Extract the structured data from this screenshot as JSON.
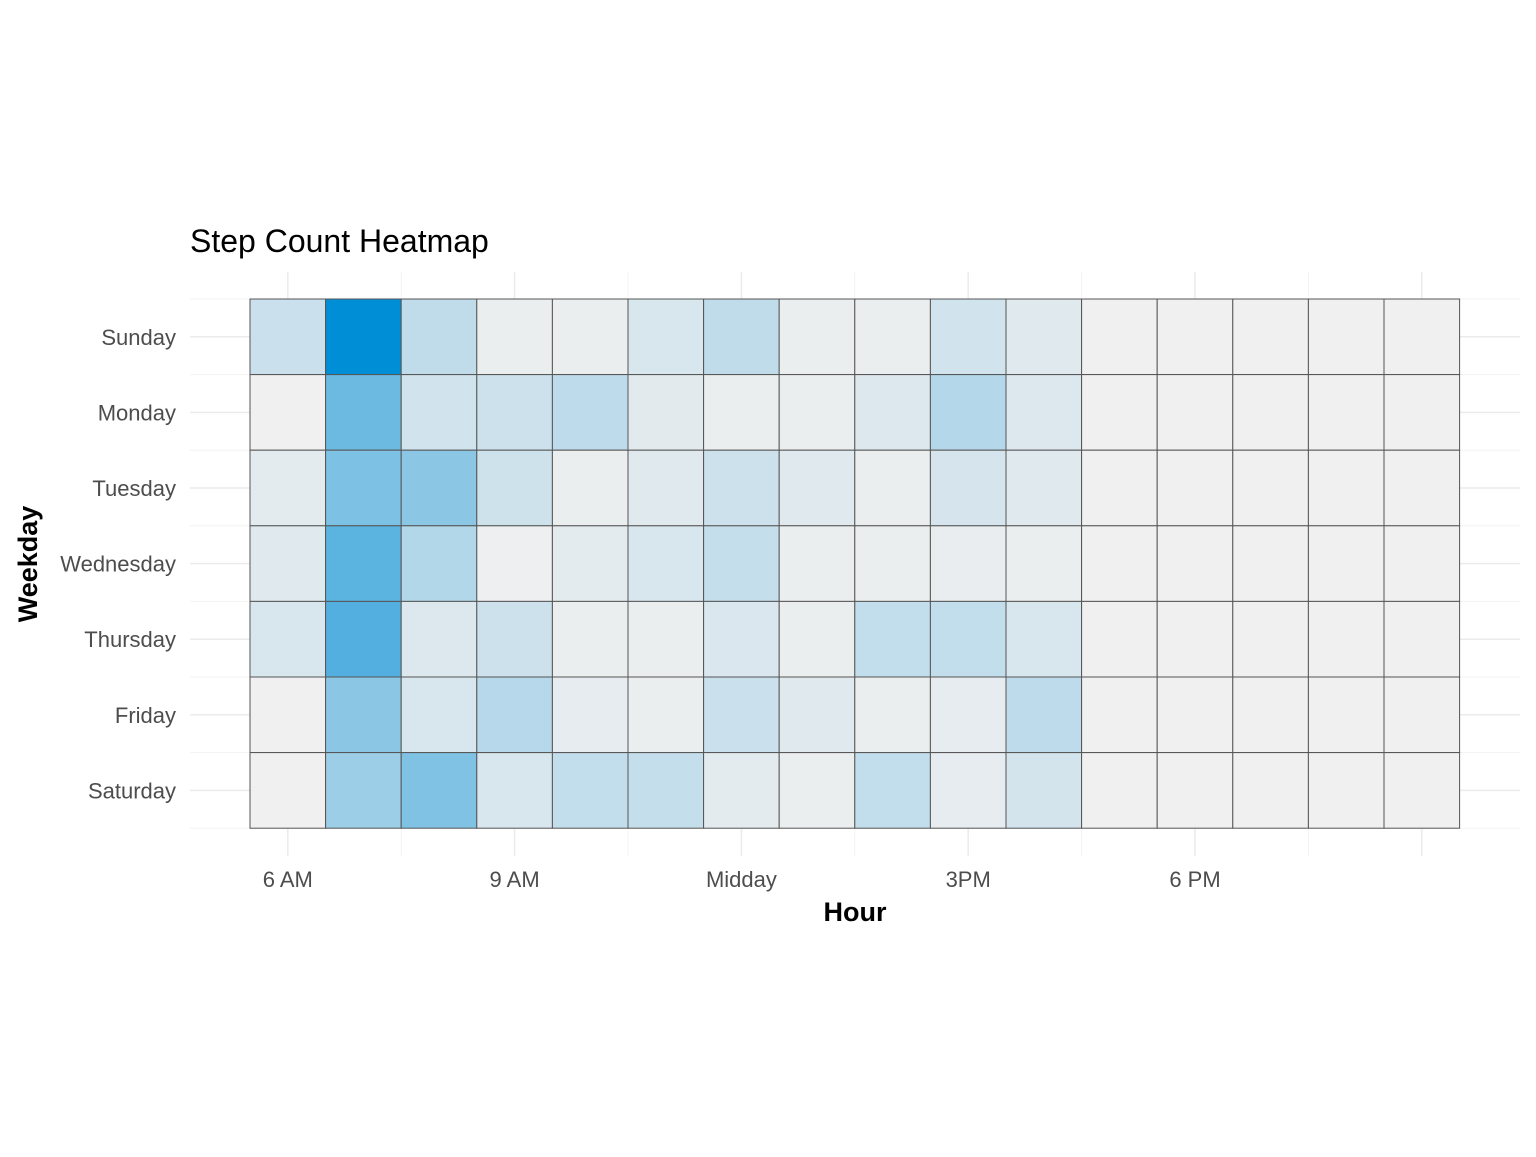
{
  "chart_data": {
    "type": "heatmap",
    "title": "Step Count Heatmap",
    "xlabel": "Hour",
    "ylabel": "Weekday",
    "x_hours": [
      6,
      7,
      8,
      9,
      10,
      11,
      12,
      13,
      14,
      15,
      16,
      17,
      18,
      19,
      20,
      21
    ],
    "x_ticks": [
      {
        "hour": 6,
        "label": "6 AM"
      },
      {
        "hour": 9,
        "label": "9 AM"
      },
      {
        "hour": 12,
        "label": "Midday"
      },
      {
        "hour": 15,
        "label": "3PM"
      },
      {
        "hour": 18,
        "label": "6 PM"
      }
    ],
    "rows": [
      "Sunday",
      "Monday",
      "Tuesday",
      "Wednesday",
      "Thursday",
      "Friday",
      "Saturday"
    ],
    "values": [
      [
        0.16,
        1.0,
        0.2,
        0.02,
        0.02,
        0.1,
        0.2,
        0.02,
        0.02,
        0.13,
        0.07,
        0.0,
        0.0,
        0.0,
        0.0,
        0.0
      ],
      [
        0.0,
        0.55,
        0.13,
        0.15,
        0.21,
        0.06,
        0.02,
        0.02,
        0.08,
        0.25,
        0.08,
        0.0,
        0.0,
        0.0,
        0.0,
        0.0
      ],
      [
        0.05,
        0.48,
        0.42,
        0.14,
        0.02,
        0.07,
        0.15,
        0.07,
        0.02,
        0.11,
        0.07,
        0.0,
        0.0,
        0.0,
        0.0,
        0.0
      ],
      [
        0.07,
        0.62,
        0.26,
        0.01,
        0.05,
        0.1,
        0.18,
        0.02,
        0.02,
        0.03,
        0.02,
        0.0,
        0.0,
        0.0,
        0.0,
        0.0
      ],
      [
        0.1,
        0.66,
        0.08,
        0.15,
        0.02,
        0.02,
        0.09,
        0.02,
        0.19,
        0.19,
        0.1,
        0.0,
        0.0,
        0.0,
        0.0,
        0.0
      ],
      [
        0.0,
        0.42,
        0.1,
        0.24,
        0.04,
        0.02,
        0.16,
        0.07,
        0.02,
        0.04,
        0.21,
        0.0,
        0.0,
        0.0,
        0.0,
        0.0
      ],
      [
        0.0,
        0.35,
        0.47,
        0.1,
        0.19,
        0.18,
        0.05,
        0.02,
        0.19,
        0.04,
        0.12,
        0.0,
        0.0,
        0.0,
        0.0,
        0.0
      ]
    ],
    "value_scale": "relative intensity 0–1",
    "color_low": "#f0f0f0",
    "color_high": "#008ed6",
    "grid": true,
    "legend": "none"
  }
}
